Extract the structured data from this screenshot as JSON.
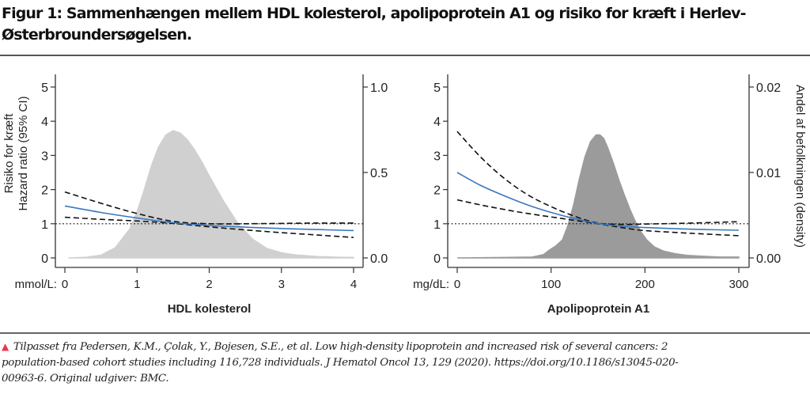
{
  "title": "Figur 1: Sammenhængen mellem HDL kolesterol, apolipoprotein A1 og risiko for kræft i Herlev-Østerbroundersøgelsen.",
  "footnote": {
    "marker_icon": "triangle-up-icon",
    "marker_color": "#e8384f",
    "text": "Tilpasset fra Pedersen, K.M., Çolak, Y., Bojesen, S.E., et al. Low high-density lipoprotein and increased risk of several cancers: 2 population-based cohort studies including 116,728 individuals. J Hematol Oncol 13, 129 (2020). https://doi.org/10.1186/s13045-020-00963-6. Original udgiver: BMC."
  },
  "colors": {
    "hr_line": "#3a78bd",
    "ci_line": "#111111",
    "density_left": "#d0d0d0",
    "density_right": "#9b9b9b",
    "axis": "#333333"
  },
  "chart_data": [
    {
      "type": "line",
      "panel": "left",
      "xlabel": "HDL kolesterol",
      "x_unit_label": "mmol/L:",
      "ylabel": [
        "Risiko for kræft",
        "Hazard ratio (95% CI)"
      ],
      "y2label": "",
      "xlim": [
        0,
        4
      ],
      "ylim": [
        0,
        5
      ],
      "y2lim": [
        0,
        1.0
      ],
      "x_ticks": [
        "0",
        "1",
        "2",
        "3",
        "4"
      ],
      "x_tick_values": [
        0,
        1,
        2,
        3,
        4
      ],
      "y_ticks": [
        "0",
        "1",
        "2",
        "3",
        "4",
        "5"
      ],
      "y_tick_values": [
        0,
        1,
        2,
        3,
        4,
        5
      ],
      "y2_ticks": [
        "0.0",
        "0.5",
        "1.0"
      ],
      "y2_tick_values": [
        0,
        0.5,
        1.0
      ],
      "reference_line": 1,
      "grid": false,
      "series": [
        {
          "name": "Hazard ratio",
          "style": "solid",
          "x": [
            0,
            0.5,
            1.0,
            1.5,
            2.0,
            2.5,
            3.0,
            3.5,
            4.0
          ],
          "values": [
            1.52,
            1.33,
            1.17,
            1.03,
            0.95,
            0.9,
            0.86,
            0.83,
            0.8
          ]
        },
        {
          "name": "95% CI upper",
          "style": "dashed",
          "x": [
            0,
            0.5,
            1.0,
            1.5,
            2.0,
            2.5,
            3.0,
            3.5,
            4.0
          ],
          "values": [
            1.93,
            1.6,
            1.3,
            1.07,
            1.0,
            1.0,
            1.01,
            1.02,
            1.02
          ]
        },
        {
          "name": "95% CI lower",
          "style": "dashed",
          "x": [
            0,
            0.5,
            1.0,
            1.5,
            2.0,
            2.5,
            3.0,
            3.5,
            4.0
          ],
          "values": [
            1.19,
            1.13,
            1.08,
            1.01,
            0.91,
            0.82,
            0.74,
            0.67,
            0.6
          ]
        },
        {
          "name": "Density",
          "style": "area",
          "axis": "right",
          "x": [
            0.05,
            0.3,
            0.5,
            0.7,
            0.9,
            1.0,
            1.1,
            1.2,
            1.3,
            1.4,
            1.5,
            1.6,
            1.7,
            1.8,
            1.9,
            2.0,
            2.2,
            2.4,
            2.6,
            2.8,
            3.0,
            3.2,
            3.5,
            3.8,
            4.0
          ],
          "values": [
            0.0,
            0.004,
            0.016,
            0.06,
            0.17,
            0.27,
            0.4,
            0.54,
            0.65,
            0.72,
            0.745,
            0.73,
            0.69,
            0.63,
            0.56,
            0.48,
            0.33,
            0.2,
            0.11,
            0.055,
            0.03,
            0.017,
            0.008,
            0.004,
            0.003
          ]
        }
      ]
    },
    {
      "type": "line",
      "panel": "right",
      "xlabel": "Apolipoprotein A1",
      "x_unit_label": "mg/dL:",
      "ylabel": [],
      "y2label": "Andel af befolkningen (density)",
      "xlim": [
        0,
        300
      ],
      "ylim": [
        0,
        5
      ],
      "y2lim": [
        0,
        0.02
      ],
      "x_ticks": [
        "0",
        "100",
        "200",
        "300"
      ],
      "x_tick_values": [
        0,
        100,
        200,
        300
      ],
      "y_ticks": [
        "0",
        "1",
        "2",
        "3",
        "4",
        "5"
      ],
      "y_tick_values": [
        0,
        1,
        2,
        3,
        4,
        5
      ],
      "y2_ticks": [
        "0.00",
        "0.01",
        "0.02"
      ],
      "y2_tick_values": [
        0,
        0.01,
        0.02
      ],
      "reference_line": 1,
      "grid": false,
      "series": [
        {
          "name": "Hazard ratio",
          "style": "solid",
          "x": [
            0,
            25,
            50,
            75,
            100,
            125,
            150,
            175,
            200,
            250,
            300
          ],
          "values": [
            2.5,
            2.12,
            1.82,
            1.55,
            1.33,
            1.15,
            1.01,
            0.93,
            0.89,
            0.84,
            0.81
          ]
        },
        {
          "name": "95% CI upper",
          "style": "dashed",
          "x": [
            0,
            25,
            50,
            75,
            100,
            125,
            150,
            175,
            200,
            250,
            300
          ],
          "values": [
            3.7,
            2.95,
            2.33,
            1.85,
            1.5,
            1.22,
            1.02,
            0.98,
            0.99,
            1.02,
            1.06
          ]
        },
        {
          "name": "95% CI lower",
          "style": "dashed",
          "x": [
            0,
            25,
            50,
            75,
            100,
            125,
            150,
            175,
            200,
            250,
            300
          ],
          "values": [
            1.7,
            1.55,
            1.42,
            1.3,
            1.2,
            1.1,
            1.0,
            0.89,
            0.8,
            0.72,
            0.65
          ]
        },
        {
          "name": "Density",
          "style": "area",
          "axis": "right",
          "x": [
            0,
            80,
            92,
            98,
            105,
            112,
            118,
            124,
            130,
            136,
            142,
            148,
            152,
            156,
            160,
            166,
            172,
            178,
            184,
            190,
            196,
            202,
            210,
            220,
            232,
            245,
            260,
            280,
            300
          ],
          "values": [
            0,
            0.0001,
            0.0004,
            0.0009,
            0.0014,
            0.0021,
            0.0038,
            0.0062,
            0.0092,
            0.0118,
            0.0136,
            0.0144,
            0.0144,
            0.014,
            0.013,
            0.0112,
            0.0092,
            0.0074,
            0.0057,
            0.0042,
            0.003,
            0.0021,
            0.0013,
            0.0008,
            0.0005,
            0.0003,
            0.0002,
            0.0001,
            0.0001
          ]
        }
      ]
    }
  ]
}
